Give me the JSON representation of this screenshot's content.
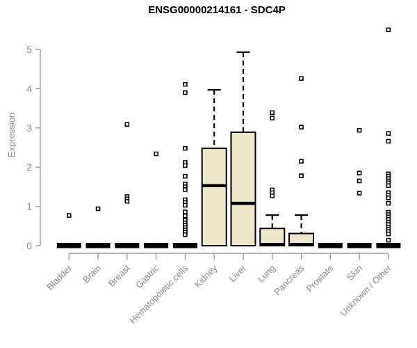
{
  "chart_data": {
    "type": "box",
    "title": "ENSG00000214161 - SDC4P",
    "ylabel": "Expression",
    "xlabel": "",
    "ylim": [
      0,
      5
    ],
    "yticks": [
      0,
      1,
      2,
      3,
      4,
      5
    ],
    "grid": false,
    "legend": "none",
    "categories": [
      "Bladder",
      "Brain",
      "Breast",
      "Gastric",
      "Hematopoietic cells",
      "Kidney",
      "Liver",
      "Lung",
      "Pancreas",
      "Prostate",
      "Skin",
      "Unknown / Other"
    ],
    "series": [
      {
        "name": "Bladder",
        "q1": 0,
        "median": 0,
        "q3": 0,
        "whisker_low": 0,
        "whisker_high": 0,
        "outliers": [
          0.77
        ]
      },
      {
        "name": "Brain",
        "q1": 0,
        "median": 0,
        "q3": 0,
        "whisker_low": 0,
        "whisker_high": 0,
        "outliers": [
          0.94
        ]
      },
      {
        "name": "Breast",
        "q1": 0,
        "median": 0,
        "q3": 0,
        "whisker_low": 0,
        "whisker_high": 0,
        "outliers": [
          3.09,
          1.25,
          1.19,
          1.13
        ]
      },
      {
        "name": "Gastric",
        "q1": 0,
        "median": 0,
        "q3": 0,
        "whisker_low": 0,
        "whisker_high": 0,
        "outliers": [
          2.34
        ]
      },
      {
        "name": "Hematopoietic cells",
        "q1": 0,
        "median": 0,
        "q3": 0,
        "whisker_low": 0,
        "whisker_high": 0,
        "outliers": [
          4.11,
          3.9,
          2.48,
          2.12,
          2.04,
          1.77,
          1.57,
          1.5,
          1.43,
          1.17,
          1.1,
          1.03,
          0.86,
          0.76,
          0.65,
          0.58,
          0.52,
          0.46,
          0.4,
          0.34,
          0.28
        ]
      },
      {
        "name": "Kidney",
        "q1": 0,
        "median": 1.53,
        "q3": 2.48,
        "whisker_low": 0,
        "whisker_high": 3.97,
        "outliers": []
      },
      {
        "name": "Liver",
        "q1": 0,
        "median": 1.08,
        "q3": 2.89,
        "whisker_low": 0,
        "whisker_high": 4.93,
        "outliers": []
      },
      {
        "name": "Lung",
        "q1": 0,
        "median": 0.03,
        "q3": 0.44,
        "whisker_low": 0,
        "whisker_high": 0.78,
        "outliers": [
          3.39,
          3.25,
          1.42,
          1.35,
          1.27
        ]
      },
      {
        "name": "Pancreas",
        "q1": 0,
        "median": 0.03,
        "q3": 0.31,
        "whisker_low": 0,
        "whisker_high": 0.78,
        "outliers": [
          4.26,
          3.02,
          2.15,
          1.78
        ]
      },
      {
        "name": "Prostate",
        "q1": 0,
        "median": 0,
        "q3": 0,
        "whisker_low": 0,
        "whisker_high": 0,
        "outliers": []
      },
      {
        "name": "Skin",
        "q1": 0,
        "median": 0,
        "q3": 0,
        "whisker_low": 0,
        "whisker_high": 0,
        "outliers": [
          2.94,
          1.85,
          1.65,
          1.34
        ]
      },
      {
        "name": "Unknown / Other",
        "q1": 0,
        "median": 0,
        "q3": 0,
        "whisker_low": 0,
        "whisker_high": 0,
        "outliers": [
          5.5,
          2.86,
          2.66,
          1.83,
          1.77,
          1.71,
          1.65,
          1.6,
          1.53,
          1.35,
          1.29,
          1.22,
          1.08,
          0.85,
          0.79,
          0.73,
          0.67,
          0.6,
          0.54,
          0.47,
          0.42,
          0.36,
          0.3,
          0.14
        ]
      }
    ],
    "colors": {
      "box_fill": "#ECE6CB",
      "box_stroke": "#000000",
      "flat_bar": "#000000",
      "axis": "#9a9a9a",
      "tick_text": "#8a8a8a",
      "title": "#000000",
      "outlier_fill": "#ffffff"
    }
  }
}
